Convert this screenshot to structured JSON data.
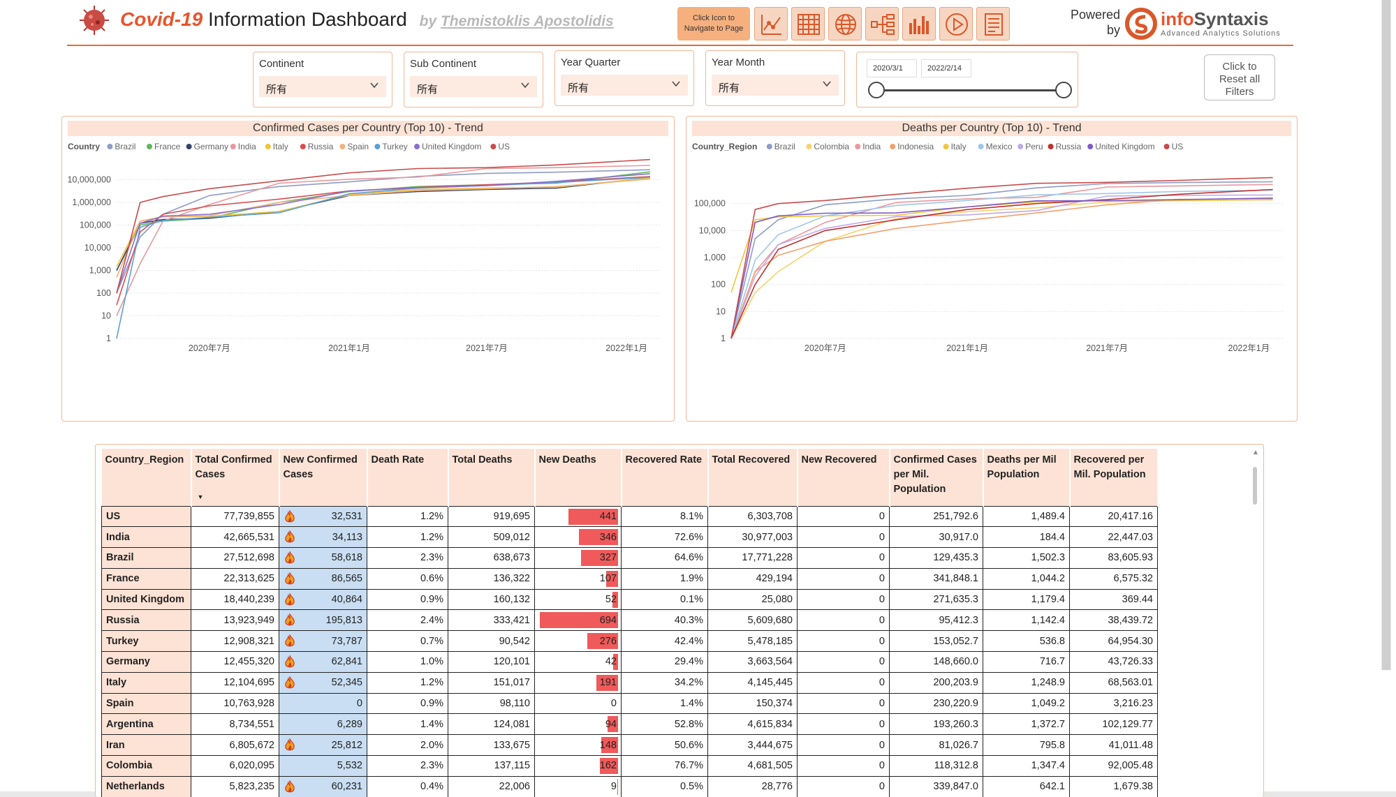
{
  "header": {
    "title_highlight": "Covid-19",
    "title_rest": " Information Dashboard",
    "by_prefix": "by ",
    "author": "Themistoklis Apostolidis",
    "nav_hint_line1": "Click Icon to",
    "nav_hint_line2": "Navigate to Page",
    "nav_icons": [
      "trend-chart-icon",
      "table-grid-icon",
      "globe-icon",
      "decomposition-tree-icon",
      "bar-chart-icon",
      "play-icon",
      "report-icon"
    ],
    "powered_line1": "Powered",
    "powered_line2": "by",
    "logo_brand_a": "info",
    "logo_brand_b": "Syntaxis",
    "logo_tagline": "Advanced Analytics Solutions"
  },
  "filters": [
    {
      "label": "Continent",
      "value": "所有"
    },
    {
      "label": "Sub Continent",
      "value": "所有"
    },
    {
      "label": "Year Quarter",
      "value": "所有"
    },
    {
      "label": "Year Month",
      "value": "所有"
    }
  ],
  "date_filter": {
    "start": "2020/3/1",
    "end": "2022/2/14"
  },
  "reset": {
    "line1": "Click to",
    "line2": "Reset all",
    "line3": "Filters"
  },
  "chart_data": [
    {
      "type": "line",
      "title": "Confirmed Cases per Country (Top 10) - Trend",
      "legend_title": "Country",
      "y_scale": "log",
      "ylim": [
        1,
        100000000
      ],
      "y_ticks": [
        "1",
        "10",
        "100",
        "1,000",
        "10,000",
        "100,000",
        "1,000,000",
        "10,000,000"
      ],
      "x_ticks": [
        "2020年7月",
        "2021年1月",
        "2021年7月",
        "2022年1月"
      ],
      "x": [
        "2020-03",
        "2020-04",
        "2020-05",
        "2020-07",
        "2020-10",
        "2021-01",
        "2021-04",
        "2021-07",
        "2021-10",
        "2022-02"
      ],
      "series": [
        {
          "name": "Brazil",
          "color": "#8e9cc7",
          "values": [
            100,
            30000,
            300000,
            2000000,
            5000000,
            8000000,
            14000000,
            19000000,
            21500000,
            27500000
          ]
        },
        {
          "name": "France",
          "color": "#5fb85b",
          "values": [
            1000,
            100000,
            150000,
            200000,
            1000000,
            3000000,
            5000000,
            6000000,
            7000000,
            22300000
          ]
        },
        {
          "name": "Germany",
          "color": "#33436b",
          "values": [
            1000,
            120000,
            175000,
            200000,
            400000,
            2000000,
            3000000,
            3700000,
            4300000,
            12400000
          ]
        },
        {
          "name": "India",
          "color": "#e8989c",
          "values": [
            10,
            2000,
            150000,
            800000,
            7000000,
            10500000,
            13000000,
            31000000,
            34000000,
            42600000
          ]
        },
        {
          "name": "Italy",
          "color": "#f0c53c",
          "values": [
            1500,
            150000,
            230000,
            245000,
            400000,
            2200000,
            3700000,
            4300000,
            4700000,
            12100000
          ]
        },
        {
          "name": "Russia",
          "color": "#d94e4e",
          "values": [
            30,
            50000,
            300000,
            700000,
            1400000,
            3200000,
            4600000,
            6000000,
            8000000,
            13900000
          ]
        },
        {
          "name": "Spain",
          "color": "#f2b07a",
          "values": [
            500,
            150000,
            230000,
            260000,
            1000000,
            2000000,
            3300000,
            4000000,
            5000000,
            10700000
          ]
        },
        {
          "name": "Turkey",
          "color": "#5aa0d8",
          "values": [
            1,
            80000,
            160000,
            220000,
            350000,
            2400000,
            4300000,
            5500000,
            7500000,
            12900000
          ]
        },
        {
          "name": "United Kingdom",
          "color": "#8a6fd0",
          "values": [
            100,
            120000,
            250000,
            300000,
            800000,
            3200000,
            4400000,
            5500000,
            8500000,
            18400000
          ]
        },
        {
          "name": "US",
          "color": "#c94b4b",
          "values": [
            100,
            1000000,
            1800000,
            4000000,
            9000000,
            20000000,
            31000000,
            34000000,
            45000000,
            77700000
          ]
        }
      ]
    },
    {
      "type": "line",
      "title": "Deaths per Country (Top 10) - Trend",
      "legend_title": "Country_Region",
      "y_scale": "log",
      "ylim": [
        1,
        1000000
      ],
      "y_ticks": [
        "1",
        "10",
        "100",
        "1,000",
        "10,000",
        "100,000"
      ],
      "x_ticks": [
        "2020年7月",
        "2021年1月",
        "2021年7月",
        "2022年1月"
      ],
      "x": [
        "2020-03",
        "2020-04",
        "2020-05",
        "2020-07",
        "2020-10",
        "2021-01",
        "2021-04",
        "2021-07",
        "2021-10",
        "2022-02"
      ],
      "series": [
        {
          "name": "Brazil",
          "color": "#8e9cc7",
          "values": [
            1,
            5000,
            25000,
            90000,
            150000,
            200000,
            380000,
            550000,
            600000,
            638000
          ]
        },
        {
          "name": "Colombia",
          "color": "#f5d36a",
          "values": [
            1,
            50,
            300,
            4000,
            28000,
            50000,
            70000,
            115000,
            126000,
            137000
          ]
        },
        {
          "name": "India",
          "color": "#e8989c",
          "values": [
            1,
            300,
            3000,
            20000,
            110000,
            150000,
            170000,
            410000,
            450000,
            509000
          ]
        },
        {
          "name": "Indonesia",
          "color": "#f2a06a",
          "values": [
            1,
            300,
            1200,
            4000,
            12000,
            24000,
            45000,
            90000,
            143000,
            145000
          ]
        },
        {
          "name": "Italy",
          "color": "#f0c53c",
          "values": [
            50,
            25000,
            32000,
            35000,
            37000,
            75000,
            115000,
            127000,
            131000,
            151000
          ]
        },
        {
          "name": "Mexico",
          "color": "#9fc7ea",
          "values": [
            1,
            800,
            7000,
            35000,
            85000,
            130000,
            210000,
            235000,
            280000,
            313000
          ]
        },
        {
          "name": "Peru",
          "color": "#c2a8e8",
          "values": [
            1,
            200,
            3000,
            12000,
            33000,
            38000,
            55000,
            190000,
            200000,
            208000
          ]
        },
        {
          "name": "Russia",
          "color": "#c0302e",
          "values": [
            1,
            100,
            2000,
            10000,
            25000,
            60000,
            100000,
            140000,
            220000,
            333000
          ]
        },
        {
          "name": "United Kingdom",
          "color": "#7d5ac8",
          "values": [
            1,
            20000,
            35000,
            44000,
            45000,
            75000,
            127000,
            128000,
            140000,
            160000
          ]
        },
        {
          "name": "US",
          "color": "#c94b4b",
          "values": [
            1,
            60000,
            100000,
            130000,
            220000,
            370000,
            560000,
            610000,
            720000,
            919000
          ]
        }
      ]
    }
  ],
  "table": {
    "columns": [
      "Country_Region",
      "Total Confirmed Cases",
      "New Confirmed Cases",
      "Death Rate",
      "Total Deaths",
      "New Deaths",
      "Recovered Rate",
      "Total Recovered",
      "New Recovered",
      "Confirmed Cases per Mil. Population",
      "Deaths per Mil Population",
      "Recovered per Mil. Population"
    ],
    "rows": [
      {
        "country": "US",
        "total_confirmed": "77,739,855",
        "new_confirmed": "32,531",
        "flame": true,
        "death_rate": "1.2%",
        "total_deaths": "919,695",
        "new_deaths": "441",
        "new_deaths_value": 441,
        "recovered_rate": "8.1%",
        "total_recovered": "6,303,708",
        "new_recovered": "0",
        "conf_per_mil": "251,792.6",
        "deaths_per_mil": "1,489.4",
        "rec_per_mil": "20,417.16"
      },
      {
        "country": "India",
        "total_confirmed": "42,665,531",
        "new_confirmed": "34,113",
        "flame": true,
        "death_rate": "1.2%",
        "total_deaths": "509,012",
        "new_deaths": "346",
        "new_deaths_value": 346,
        "recovered_rate": "72.6%",
        "total_recovered": "30,977,003",
        "new_recovered": "0",
        "conf_per_mil": "30,917.0",
        "deaths_per_mil": "184.4",
        "rec_per_mil": "22,447.03"
      },
      {
        "country": "Brazil",
        "total_confirmed": "27,512,698",
        "new_confirmed": "58,618",
        "flame": true,
        "death_rate": "2.3%",
        "total_deaths": "638,673",
        "new_deaths": "327",
        "new_deaths_value": 327,
        "recovered_rate": "64.6%",
        "total_recovered": "17,771,228",
        "new_recovered": "0",
        "conf_per_mil": "129,435.3",
        "deaths_per_mil": "1,502.3",
        "rec_per_mil": "83,605.93"
      },
      {
        "country": "France",
        "total_confirmed": "22,313,625",
        "new_confirmed": "86,565",
        "flame": true,
        "death_rate": "0.6%",
        "total_deaths": "136,322",
        "new_deaths": "107",
        "new_deaths_value": 107,
        "recovered_rate": "1.9%",
        "total_recovered": "429,194",
        "new_recovered": "0",
        "conf_per_mil": "341,848.1",
        "deaths_per_mil": "1,044.2",
        "rec_per_mil": "6,575.32"
      },
      {
        "country": "United Kingdom",
        "total_confirmed": "18,440,239",
        "new_confirmed": "40,864",
        "flame": true,
        "death_rate": "0.9%",
        "total_deaths": "160,132",
        "new_deaths": "52",
        "new_deaths_value": 52,
        "recovered_rate": "0.1%",
        "total_recovered": "25,080",
        "new_recovered": "0",
        "conf_per_mil": "271,635.3",
        "deaths_per_mil": "1,179.4",
        "rec_per_mil": "369.44"
      },
      {
        "country": "Russia",
        "total_confirmed": "13,923,949",
        "new_confirmed": "195,813",
        "flame": true,
        "death_rate": "2.4%",
        "total_deaths": "333,421",
        "new_deaths": "694",
        "new_deaths_value": 694,
        "recovered_rate": "40.3%",
        "total_recovered": "5,609,680",
        "new_recovered": "0",
        "conf_per_mil": "95,412.3",
        "deaths_per_mil": "1,142.4",
        "rec_per_mil": "38,439.72"
      },
      {
        "country": "Turkey",
        "total_confirmed": "12,908,321",
        "new_confirmed": "73,787",
        "flame": true,
        "death_rate": "0.7%",
        "total_deaths": "90,542",
        "new_deaths": "276",
        "new_deaths_value": 276,
        "recovered_rate": "42.4%",
        "total_recovered": "5,478,185",
        "new_recovered": "0",
        "conf_per_mil": "153,052.7",
        "deaths_per_mil": "536.8",
        "rec_per_mil": "64,954.30"
      },
      {
        "country": "Germany",
        "total_confirmed": "12,455,320",
        "new_confirmed": "62,841",
        "flame": true,
        "death_rate": "1.0%",
        "total_deaths": "120,101",
        "new_deaths": "42",
        "new_deaths_value": 42,
        "recovered_rate": "29.4%",
        "total_recovered": "3,663,564",
        "new_recovered": "0",
        "conf_per_mil": "148,660.0",
        "deaths_per_mil": "716.7",
        "rec_per_mil": "43,726.33"
      },
      {
        "country": "Italy",
        "total_confirmed": "12,104,695",
        "new_confirmed": "52,345",
        "flame": true,
        "death_rate": "1.2%",
        "total_deaths": "151,017",
        "new_deaths": "191",
        "new_deaths_value": 191,
        "recovered_rate": "34.2%",
        "total_recovered": "4,145,445",
        "new_recovered": "0",
        "conf_per_mil": "200,203.9",
        "deaths_per_mil": "1,248.9",
        "rec_per_mil": "68,563.01"
      },
      {
        "country": "Spain",
        "total_confirmed": "10,763,928",
        "new_confirmed": "0",
        "flame": false,
        "death_rate": "0.9%",
        "total_deaths": "98,110",
        "new_deaths": "0",
        "new_deaths_value": 0,
        "recovered_rate": "1.4%",
        "total_recovered": "150,374",
        "new_recovered": "0",
        "conf_per_mil": "230,220.9",
        "deaths_per_mil": "1,049.2",
        "rec_per_mil": "3,216.23"
      },
      {
        "country": "Argentina",
        "total_confirmed": "8,734,551",
        "new_confirmed": "6,289",
        "flame": false,
        "death_rate": "1.4%",
        "total_deaths": "124,081",
        "new_deaths": "94",
        "new_deaths_value": 94,
        "recovered_rate": "52.8%",
        "total_recovered": "4,615,834",
        "new_recovered": "0",
        "conf_per_mil": "193,260.3",
        "deaths_per_mil": "1,372.7",
        "rec_per_mil": "102,129.77"
      },
      {
        "country": "Iran",
        "total_confirmed": "6,805,672",
        "new_confirmed": "25,812",
        "flame": true,
        "death_rate": "2.0%",
        "total_deaths": "133,675",
        "new_deaths": "148",
        "new_deaths_value": 148,
        "recovered_rate": "50.6%",
        "total_recovered": "3,444,675",
        "new_recovered": "0",
        "conf_per_mil": "81,026.7",
        "deaths_per_mil": "795.8",
        "rec_per_mil": "41,011.48"
      },
      {
        "country": "Colombia",
        "total_confirmed": "6,020,095",
        "new_confirmed": "5,532",
        "flame": false,
        "death_rate": "2.3%",
        "total_deaths": "137,115",
        "new_deaths": "162",
        "new_deaths_value": 162,
        "recovered_rate": "76.7%",
        "total_recovered": "4,681,505",
        "new_recovered": "0",
        "conf_per_mil": "118,312.8",
        "deaths_per_mil": "1,347.4",
        "rec_per_mil": "92,005.48"
      },
      {
        "country": "Netherlands",
        "total_confirmed": "5,823,235",
        "new_confirmed": "60,231",
        "flame": true,
        "death_rate": "0.4%",
        "total_deaths": "22,006",
        "new_deaths": "9",
        "new_deaths_value": 9,
        "recovered_rate": "0.5%",
        "total_recovered": "28,776",
        "new_recovered": "0",
        "conf_per_mil": "339,847.0",
        "deaths_per_mil": "642.1",
        "rec_per_mil": "1,679.38"
      }
    ]
  }
}
